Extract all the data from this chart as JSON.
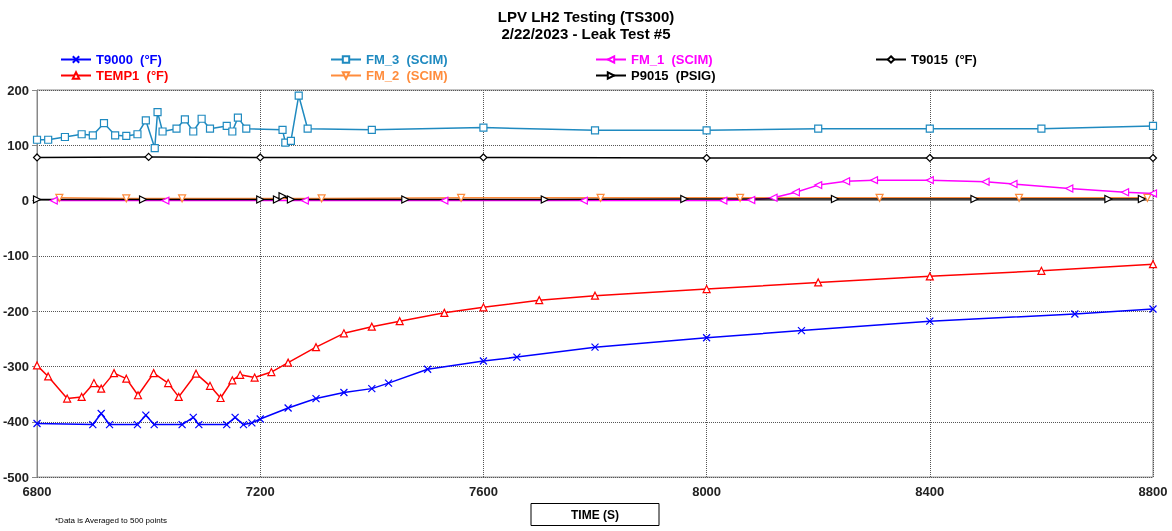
{
  "chart_data": {
    "type": "line",
    "title": "LPV LH2 Testing (TS300)",
    "subtitle": "2/22/2023 - Leak Test #5",
    "xlabel": "TIME (S)",
    "annotations": [
      "*Data is Averaged to 500 points"
    ],
    "xlim": [
      6800,
      8800
    ],
    "xticks": [
      6800,
      7200,
      7600,
      8000,
      8400,
      8800
    ],
    "ylim": [
      -500,
      200
    ],
    "yticks": [
      -500,
      -400,
      -300,
      -200,
      -100,
      0,
      100,
      200
    ],
    "grid": true,
    "legend": "top",
    "line_style": "solid",
    "series": [
      {
        "name": "T9000  (°F)",
        "color": "#0000ff",
        "marker": "cross",
        "x": [
          6800,
          6900,
          6915,
          6930,
          6980,
          6995,
          7010,
          7060,
          7080,
          7090,
          7140,
          7155,
          7170,
          7185,
          7200,
          7250,
          7300,
          7350,
          7400,
          7430,
          7500,
          7600,
          7660,
          7800,
          8000,
          8170,
          8400,
          8660,
          8800
        ],
        "values": [
          -403,
          -405,
          -385,
          -405,
          -405,
          -388,
          -405,
          -405,
          -392,
          -405,
          -405,
          -392,
          -405,
          -402,
          -395,
          -375,
          -358,
          -347,
          -340,
          -330,
          -305,
          -290,
          -283,
          -265,
          -248,
          -235,
          -218,
          -205,
          -196
        ]
      },
      {
        "name": "TEMP1  (°F)",
        "color": "#ff0000",
        "marker": "triangle",
        "x": [
          6800,
          6820,
          6854,
          6880,
          6902,
          6915,
          6938,
          6960,
          6981,
          7009,
          7035,
          7054,
          7085,
          7110,
          7129,
          7150,
          7164,
          7190,
          7220,
          7250,
          7300,
          7350,
          7400,
          7450,
          7530,
          7600,
          7700,
          7800,
          8000,
          8200,
          8400,
          8600,
          8800
        ],
        "values": [
          -298,
          -318,
          -358,
          -355,
          -330,
          -340,
          -312,
          -322,
          -352,
          -312,
          -330,
          -355,
          -313,
          -335,
          -357,
          -325,
          -315,
          -320,
          -310,
          -293,
          -265,
          -240,
          -228,
          -218,
          -203,
          -193,
          -180,
          -172,
          -160,
          -148,
          -137,
          -127,
          -115
        ]
      },
      {
        "name": "FM_3  (SCIM)",
        "color": "#1f8ac0",
        "marker": "square",
        "x": [
          6800,
          6820,
          6850,
          6880,
          6900,
          6920,
          6940,
          6960,
          6980,
          6995,
          7011,
          7016,
          7025,
          7050,
          7065,
          7080,
          7095,
          7110,
          7140,
          7150,
          7160,
          7175,
          7240,
          7245,
          7255,
          7269,
          7285,
          7400,
          7600,
          7800,
          8000,
          8200,
          8400,
          8600,
          8800
        ],
        "values": [
          110,
          110,
          115,
          120,
          118,
          140,
          118,
          117,
          120,
          145,
          95,
          160,
          125,
          130,
          147,
          125,
          148,
          130,
          135,
          125,
          150,
          130,
          128,
          105,
          108,
          190,
          130,
          128,
          132,
          127,
          127,
          130,
          130,
          130,
          135
        ]
      },
      {
        "name": "FM_2  (SCIM)",
        "color": "#ff8c3c",
        "marker": "triangle-down",
        "x": [
          6840,
          6960,
          7060,
          7310,
          7560,
          7810,
          8060,
          8310,
          8560,
          8790
        ],
        "values": [
          5,
          4,
          4,
          4,
          5,
          5,
          5,
          5,
          5,
          5
        ]
      },
      {
        "name": "FM_1  (SCIM)",
        "color": "#ff00ff",
        "marker": "triangle-left",
        "x": [
          6830,
          7030,
          7280,
          7530,
          7780,
          8030,
          8080,
          8120,
          8160,
          8200,
          8250,
          8300,
          8400,
          8500,
          8550,
          8650,
          8750,
          8800
        ],
        "values": [
          0,
          0,
          0,
          0,
          0,
          0,
          1,
          5,
          15,
          28,
          35,
          37,
          37,
          34,
          30,
          22,
          15,
          13
        ]
      },
      {
        "name": "P9015  (PSIG)",
        "color": "#000000",
        "marker": "triangle-right",
        "x": [
          6800,
          6990,
          7200,
          7230,
          7240,
          7255,
          7460,
          7710,
          7960,
          8230,
          8480,
          8720,
          8780
        ],
        "values": [
          2,
          2,
          2,
          2,
          8,
          2,
          2,
          2,
          3,
          3,
          3,
          3,
          3
        ]
      },
      {
        "name": "T9015  (°F)",
        "color": "#000000",
        "marker": "diamond",
        "x": [
          6800,
          7000,
          7200,
          7600,
          8000,
          8400,
          8800
        ],
        "values": [
          78,
          79,
          78,
          78,
          77,
          77,
          77
        ]
      }
    ]
  }
}
